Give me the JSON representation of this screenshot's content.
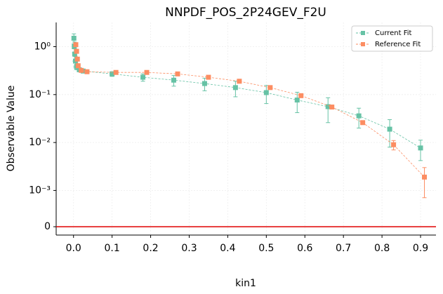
{
  "chart_data": {
    "type": "errorbar",
    "title": "NNPDF_POS_2P24GEV_F2U",
    "xlabel": "kin1",
    "ylabel": "Observable Value",
    "yscale": "symlog",
    "linthresh": 0.001,
    "xlim": [
      -0.045,
      0.94
    ],
    "ylim": [
      -0.00023,
      3.2
    ],
    "xticks": [
      {
        "value": 0,
        "label": "0.0"
      },
      0.1,
      0.2,
      0.3,
      0.4,
      0.5,
      0.6,
      0.7,
      0.8,
      0.9
    ],
    "yticks": [
      0,
      {
        "value": 0.001,
        "label": "10⁻³"
      },
      {
        "value": 0.01,
        "label": "10⁻²"
      },
      {
        "value": 0.1,
        "label": "10⁻¹"
      },
      {
        "value": 1,
        "label": "10⁰"
      }
    ],
    "grid": true,
    "legend": "upper right",
    "hline": {
      "value": 0,
      "color": "#e00000"
    },
    "series": [
      {
        "name": "Current Fit",
        "color": "#66c2a5",
        "x": [
          0.001,
          0.002,
          0.003,
          0.005,
          0.008,
          0.015,
          0.025,
          0.1,
          0.18,
          0.26,
          0.34,
          0.42,
          0.5,
          0.58,
          0.66,
          0.74,
          0.82,
          0.9
        ],
        "values": [
          1.5,
          1.0,
          0.7,
          0.5,
          0.38,
          0.33,
          0.31,
          0.27,
          0.23,
          0.2,
          0.17,
          0.14,
          0.11,
          0.077,
          0.056,
          0.036,
          0.019,
          0.0077
        ],
        "errors": [
          0.35,
          0.25,
          0.2,
          0.12,
          0.05,
          0.03,
          0.02,
          0.03,
          0.04,
          0.05,
          0.05,
          0.05,
          0.045,
          0.035,
          0.03,
          0.016,
          0.011,
          0.0035
        ]
      },
      {
        "name": "Reference Fit",
        "color": "#fc8d62",
        "x": [
          0.006,
          0.008,
          0.01,
          0.012,
          0.02,
          0.035,
          0.11,
          0.19,
          0.27,
          0.35,
          0.43,
          0.51,
          0.59,
          0.67,
          0.75,
          0.83,
          0.91
        ],
        "values": [
          1.1,
          0.8,
          0.55,
          0.4,
          0.32,
          0.3,
          0.29,
          0.29,
          0.27,
          0.23,
          0.19,
          0.14,
          0.095,
          0.055,
          0.026,
          0.009,
          0.0019
        ],
        "errors": [
          0.05,
          0.04,
          0.03,
          0.02,
          0.01,
          0.008,
          0.006,
          0.006,
          0.006,
          0.005,
          0.005,
          0.004,
          0.003,
          0.002,
          0.0015,
          0.002,
          0.0011
        ]
      }
    ]
  }
}
